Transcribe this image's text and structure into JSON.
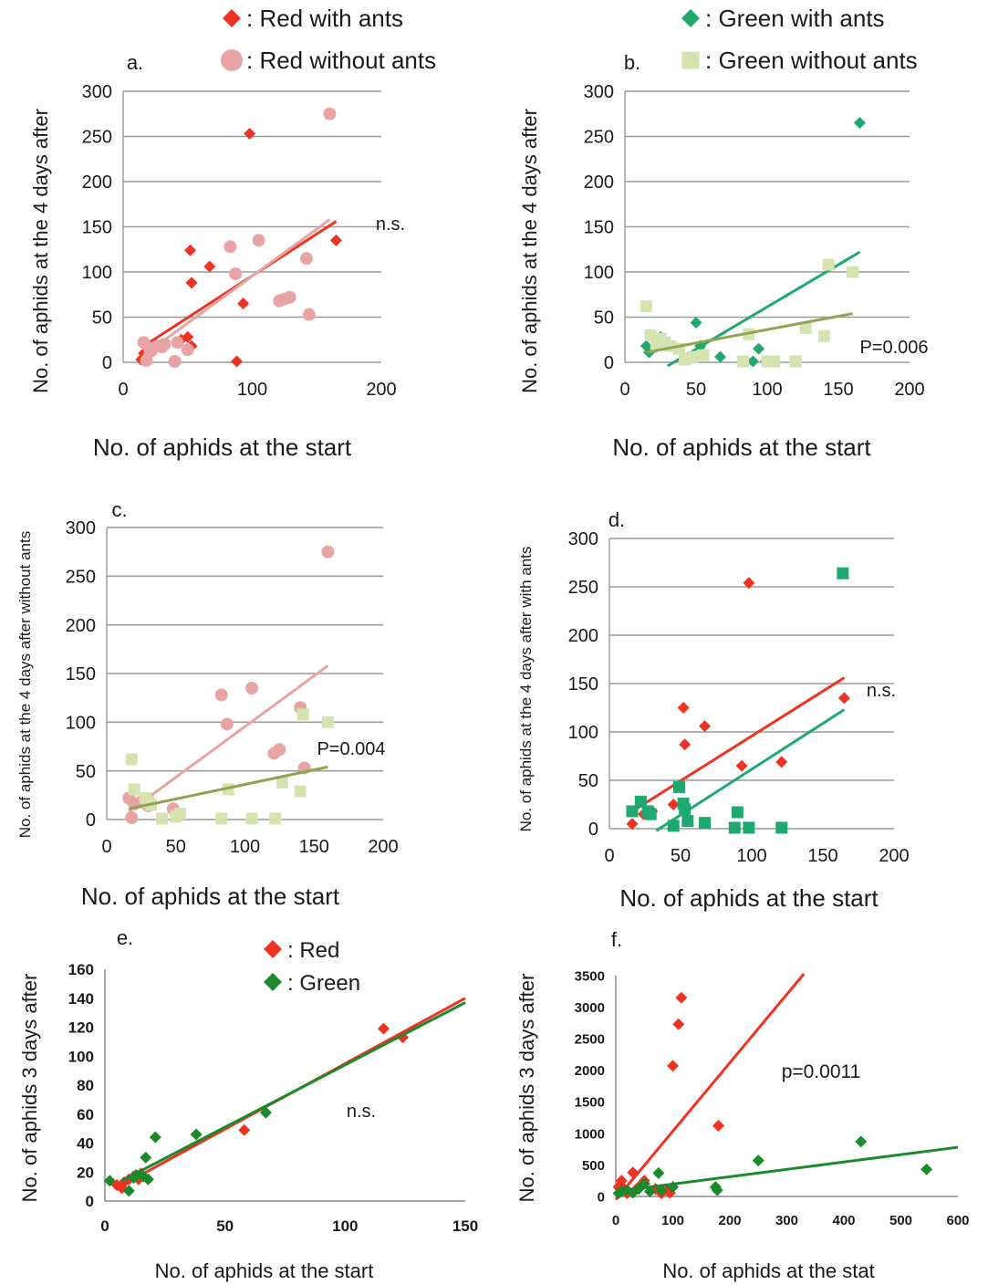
{
  "legends": {
    "a": [
      {
        "label": ": Red with ants",
        "marker": "diamond",
        "color": "#ee3322"
      },
      {
        "label": ": Red without ants",
        "marker": "circle",
        "color": "#e8a4a4"
      }
    ],
    "b": [
      {
        "label": ": Green with ants",
        "marker": "diamond",
        "color": "#1fa870"
      },
      {
        "label": ": Green without ants",
        "marker": "square",
        "color": "#d4e3b0"
      }
    ],
    "e": [
      {
        "label": ": Red",
        "marker": "diamond",
        "color": "#ee3322"
      },
      {
        "label": ": Green",
        "marker": "diamond",
        "color": "#1b8a2a"
      }
    ]
  },
  "chart_data": [
    {
      "id": "a",
      "panel_label": "a.",
      "type": "scatter",
      "xlabel": "No. of aphids at the start",
      "ylabel": "No. of aphids at the 4 days after",
      "xlim": [
        0,
        200
      ],
      "ylim": [
        0,
        300
      ],
      "xticks": [
        0,
        100,
        200
      ],
      "yticks": [
        0,
        50,
        100,
        150,
        200,
        250,
        300
      ],
      "grid": "horizontal",
      "annotation": "n.s.",
      "series": [
        {
          "name": "Red with ants",
          "marker": "diamond",
          "color": "#ee3322",
          "points": [
            [
              14,
              3
            ],
            [
              16,
              10
            ],
            [
              20,
              18
            ],
            [
              45,
              25
            ],
            [
              50,
              28
            ],
            [
              53,
              18
            ],
            [
              52,
              124
            ],
            [
              53,
              88
            ],
            [
              67,
              106
            ],
            [
              88,
              1
            ],
            [
              93,
              65
            ],
            [
              98,
              253
            ],
            [
              165,
              135
            ]
          ],
          "trend": [
            [
              15,
              17
            ],
            [
              165,
              156
            ]
          ]
        },
        {
          "name": "Red without ants",
          "marker": "circle",
          "color": "#e8a4a4",
          "points": [
            [
              16,
              22
            ],
            [
              18,
              2
            ],
            [
              20,
              16
            ],
            [
              22,
              13
            ],
            [
              27,
              18
            ],
            [
              30,
              17
            ],
            [
              32,
              20
            ],
            [
              40,
              1
            ],
            [
              42,
              22
            ],
            [
              50,
              14
            ],
            [
              83,
              128
            ],
            [
              87,
              98
            ],
            [
              105,
              135
            ],
            [
              121,
              68
            ],
            [
              125,
              70
            ],
            [
              129,
              72
            ],
            [
              142,
              115
            ],
            [
              144,
              53
            ],
            [
              160,
              275
            ]
          ],
          "trend": [
            [
              16,
              8
            ],
            [
              160,
              158
            ]
          ]
        }
      ]
    },
    {
      "id": "b",
      "panel_label": "b.",
      "type": "scatter",
      "xlabel": "No. of aphids at the start",
      "ylabel": "No. of aphids at the 4 days after",
      "xlim": [
        0,
        200
      ],
      "ylim": [
        0,
        300
      ],
      "xticks": [
        0,
        50,
        100,
        150,
        200
      ],
      "yticks": [
        0,
        50,
        100,
        150,
        200,
        250,
        300
      ],
      "grid": "horizontal",
      "annotation": "P=0.006",
      "series": [
        {
          "name": "Green with ants",
          "marker": "diamond",
          "color": "#1fa870",
          "points": [
            [
              15,
              18
            ],
            [
              17,
              11
            ],
            [
              22,
              17
            ],
            [
              25,
              28
            ],
            [
              50,
              44
            ],
            [
              53,
              18
            ],
            [
              55,
              10
            ],
            [
              67,
              6
            ],
            [
              90,
              1
            ],
            [
              94,
              15
            ],
            [
              99,
              1
            ],
            [
              165,
              265
            ]
          ],
          "trend": [
            [
              30,
              -5
            ],
            [
              165,
              122
            ]
          ]
        },
        {
          "name": "Green without ants",
          "marker": "square",
          "color": "#d4e3b0",
          "points": [
            [
              15,
              62
            ],
            [
              18,
              30
            ],
            [
              22,
              20
            ],
            [
              25,
              26
            ],
            [
              28,
              22
            ],
            [
              32,
              18
            ],
            [
              38,
              15
            ],
            [
              42,
              3
            ],
            [
              48,
              6
            ],
            [
              55,
              8
            ],
            [
              83,
              1
            ],
            [
              87,
              31
            ],
            [
              100,
              1
            ],
            [
              105,
              1
            ],
            [
              120,
              1
            ],
            [
              127,
              38
            ],
            [
              140,
              29
            ],
            [
              143,
              108
            ],
            [
              160,
              100
            ]
          ],
          "trend": [
            [
              15,
              11
            ],
            [
              160,
              54
            ]
          ]
        }
      ]
    },
    {
      "id": "c",
      "panel_label": "c.",
      "type": "scatter",
      "xlabel": "No. of aphids at the start",
      "ylabel": "No. of aphids at the 4 days after without ants",
      "xlim": [
        0,
        200
      ],
      "ylim": [
        0,
        300
      ],
      "xticks": [
        0,
        50,
        100,
        150,
        200
      ],
      "yticks": [
        0,
        50,
        100,
        150,
        200,
        250,
        300
      ],
      "grid": "horizontal",
      "annotation": "P=0.004",
      "series": [
        {
          "name": "Red without ants",
          "marker": "circle",
          "color": "#e8a4a4",
          "points": [
            [
              16,
              22
            ],
            [
              18,
              2
            ],
            [
              20,
              16
            ],
            [
              25,
              18
            ],
            [
              30,
              14
            ],
            [
              48,
              11
            ],
            [
              83,
              128
            ],
            [
              87,
              98
            ],
            [
              105,
              135
            ],
            [
              121,
              68
            ],
            [
              125,
              72
            ],
            [
              140,
              115
            ],
            [
              143,
              53
            ],
            [
              160,
              275
            ]
          ],
          "trend": [
            [
              16,
              8
            ],
            [
              160,
              158
            ]
          ]
        },
        {
          "name": "Green without ants",
          "marker": "square",
          "color": "#d4e3b0",
          "points": [
            [
              18,
              62
            ],
            [
              20,
              31
            ],
            [
              28,
              22
            ],
            [
              30,
              18
            ],
            [
              32,
              15
            ],
            [
              40,
              1
            ],
            [
              50,
              3
            ],
            [
              53,
              6
            ],
            [
              83,
              1
            ],
            [
              88,
              31
            ],
            [
              105,
              1
            ],
            [
              122,
              1
            ],
            [
              127,
              38
            ],
            [
              140,
              29
            ],
            [
              142,
              108
            ],
            [
              160,
              100
            ]
          ],
          "trend": [
            [
              16,
              11
            ],
            [
              160,
              54
            ]
          ]
        }
      ]
    },
    {
      "id": "d",
      "panel_label": "d.",
      "type": "scatter",
      "xlabel": "No. of aphids at the start",
      "ylabel": "No. of aphids at the 4 days after with ants",
      "xlim": [
        0,
        200
      ],
      "ylim": [
        0,
        300
      ],
      "xticks": [
        0,
        50,
        100,
        150,
        200
      ],
      "yticks": [
        0,
        50,
        100,
        150,
        200,
        250,
        300
      ],
      "grid": "horizontal",
      "annotation": "n.s.",
      "series": [
        {
          "name": "Red with ants",
          "marker": "diamond",
          "color": "#ee3322",
          "points": [
            [
              16,
              5
            ],
            [
              24,
              15
            ],
            [
              30,
              18
            ],
            [
              45,
              25
            ],
            [
              52,
              125
            ],
            [
              53,
              87
            ],
            [
              67,
              106
            ],
            [
              93,
              65
            ],
            [
              98,
              254
            ],
            [
              121,
              69
            ],
            [
              165,
              135
            ]
          ],
          "trend": [
            [
              15,
              17
            ],
            [
              165,
              156
            ]
          ]
        },
        {
          "name": "Green with ants",
          "marker": "square",
          "color": "#1fa870",
          "points": [
            [
              16,
              18
            ],
            [
              22,
              28
            ],
            [
              27,
              18
            ],
            [
              29,
              15
            ],
            [
              45,
              3
            ],
            [
              49,
              43
            ],
            [
              52,
              26
            ],
            [
              53,
              20
            ],
            [
              55,
              8
            ],
            [
              67,
              6
            ],
            [
              88,
              1
            ],
            [
              90,
              17
            ],
            [
              98,
              1
            ],
            [
              121,
              1
            ],
            [
              164,
              264
            ]
          ],
          "trend": [
            [
              33,
              -2
            ],
            [
              165,
              123
            ]
          ]
        }
      ]
    },
    {
      "id": "e",
      "panel_label": "e.",
      "type": "scatter",
      "xlabel": "No. of aphids at the start",
      "ylabel": "No. of aphids 3 days after",
      "xlim": [
        0,
        150
      ],
      "ylim": [
        0,
        160
      ],
      "xticks": [
        0,
        50,
        100,
        150
      ],
      "yticks": [
        0,
        20,
        40,
        60,
        80,
        100,
        120,
        140,
        160
      ],
      "grid": "none",
      "annotation": "n.s.",
      "series": [
        {
          "name": "Red",
          "marker": "diamond",
          "color": "#ee3322",
          "points": [
            [
              5,
              11
            ],
            [
              7,
              9
            ],
            [
              8,
              13
            ],
            [
              10,
              15
            ],
            [
              12,
              17
            ],
            [
              14,
              15
            ],
            [
              15,
              19
            ],
            [
              58,
              49
            ],
            [
              116,
              119
            ],
            [
              124,
              113
            ]
          ],
          "trend": [
            [
              5,
              9
            ],
            [
              150,
              140
            ]
          ]
        },
        {
          "name": "Green",
          "marker": "diamond",
          "color": "#1b8a2a",
          "points": [
            [
              2,
              14
            ],
            [
              10,
              7
            ],
            [
              12,
              16
            ],
            [
              13,
              18
            ],
            [
              16,
              17
            ],
            [
              17,
              30
            ],
            [
              18,
              15
            ],
            [
              21,
              44
            ],
            [
              38,
              46
            ],
            [
              67,
              61
            ]
          ],
          "trend": [
            [
              7,
              14
            ],
            [
              150,
              137
            ]
          ]
        }
      ]
    },
    {
      "id": "f",
      "panel_label": "f.",
      "type": "scatter",
      "xlabel": "No. of aphids at the stat",
      "ylabel": "No. of aphids 3 days after",
      "xlim": [
        0,
        600
      ],
      "ylim": [
        0,
        3500
      ],
      "xticks": [
        0,
        100,
        200,
        300,
        400,
        500,
        600
      ],
      "yticks": [
        0,
        500,
        1000,
        1500,
        2000,
        2500,
        3000,
        3500
      ],
      "grid": "none",
      "annotation": "p=0.0011",
      "series": [
        {
          "name": "Red",
          "marker": "diamond",
          "color": "#ee3322",
          "points": [
            [
              5,
              150
            ],
            [
              10,
              250
            ],
            [
              15,
              120
            ],
            [
              20,
              50
            ],
            [
              30,
              380
            ],
            [
              40,
              150
            ],
            [
              50,
              250
            ],
            [
              70,
              120
            ],
            [
              80,
              50
            ],
            [
              90,
              100
            ],
            [
              95,
              60
            ],
            [
              100,
              2070
            ],
            [
              110,
              2730
            ],
            [
              115,
              3150
            ],
            [
              180,
              1120
            ]
          ],
          "trend": [
            [
              0,
              -50
            ],
            [
              330,
              3600
            ]
          ]
        },
        {
          "name": "Green",
          "marker": "diamond",
          "color": "#1b8a2a",
          "points": [
            [
              5,
              50
            ],
            [
              10,
              80
            ],
            [
              20,
              100
            ],
            [
              30,
              60
            ],
            [
              40,
              120
            ],
            [
              50,
              200
            ],
            [
              60,
              80
            ],
            [
              75,
              370
            ],
            [
              80,
              100
            ],
            [
              100,
              150
            ],
            [
              175,
              150
            ],
            [
              178,
              100
            ],
            [
              250,
              570
            ],
            [
              430,
              870
            ],
            [
              545,
              430
            ]
          ],
          "trend": [
            [
              0,
              80
            ],
            [
              600,
              780
            ]
          ]
        }
      ]
    }
  ]
}
